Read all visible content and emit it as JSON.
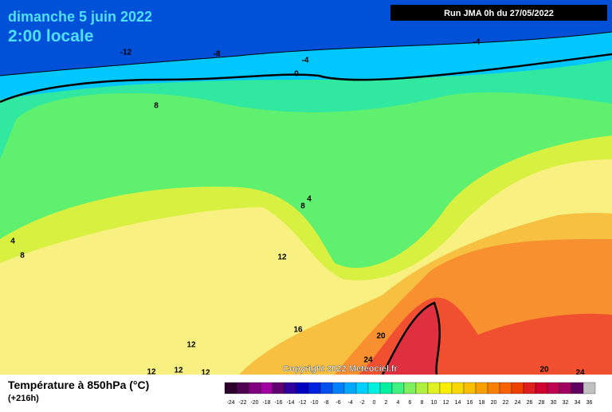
{
  "header": {
    "date": "dimanche 5 juin 2022",
    "time": "2:00 locale",
    "run": "Run JMA 0h du 27/05/2022"
  },
  "footer": {
    "copyright": "Copyright 2022 Meteociel.fr",
    "title": "Température à 850hPa (°C)",
    "lead": "(+216h)"
  },
  "contour_labels": [
    -12,
    -8,
    -4,
    0,
    -4,
    8,
    4,
    8,
    4,
    8,
    12,
    16,
    12,
    12,
    12,
    12,
    20,
    24,
    20,
    24
  ],
  "legend": {
    "ticks": [
      -24,
      -22,
      -20,
      -18,
      -16,
      -14,
      -12,
      -10,
      -8,
      -6,
      -4,
      -2,
      0,
      2,
      4,
      6,
      8,
      10,
      12,
      14,
      16,
      18,
      20,
      22,
      24,
      26,
      28,
      30,
      32,
      34,
      36
    ],
    "colors": [
      "#2b002b",
      "#500050",
      "#800080",
      "#a000a0",
      "#600070",
      "#3000a0",
      "#0000c0",
      "#0020e0",
      "#0050f0",
      "#0080ff",
      "#00a8ff",
      "#00d0ff",
      "#00f0e0",
      "#00f0a0",
      "#40f080",
      "#80f060",
      "#b0f040",
      "#e0f020",
      "#f8f000",
      "#f8d800",
      "#f8c000",
      "#f8a000",
      "#f88000",
      "#f86000",
      "#f04000",
      "#e02020",
      "#d00030",
      "#c00050",
      "#a00060",
      "#600060",
      "#c0c0c0"
    ]
  }
}
